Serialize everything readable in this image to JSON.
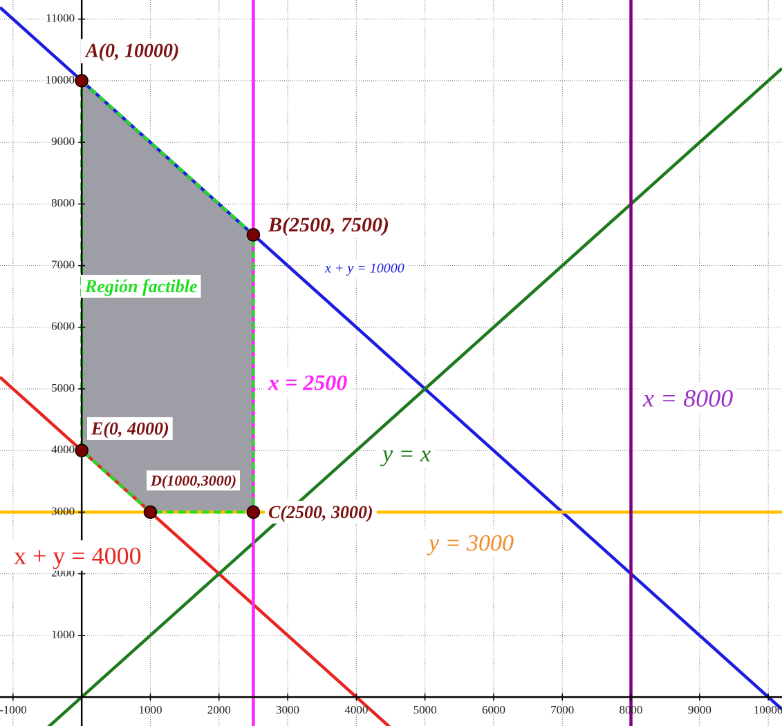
{
  "chart_data": {
    "type": "line",
    "xlim": [
      -1190,
      10200
    ],
    "ylim": [
      -470,
      11310
    ],
    "xticks": [
      -1000,
      1000,
      2000,
      3000,
      4000,
      5000,
      6000,
      7000,
      8000,
      9000,
      10000
    ],
    "yticks": [
      1000,
      2000,
      3000,
      4000,
      5000,
      6000,
      7000,
      8000,
      9000,
      10000,
      11000
    ],
    "grid": true,
    "series": [
      {
        "name": "x + y = 10000",
        "color": "#1c1ce0",
        "x": [
          -1190,
          10200
        ],
        "values": [
          11190,
          -200
        ]
      },
      {
        "name": "x + y = 4000",
        "color": "#e8241f",
        "x": [
          -1190,
          4600
        ],
        "values": [
          5190,
          -600
        ]
      },
      {
        "name": "y = x",
        "color": "#1e7a1e",
        "x": [
          -600,
          10200
        ],
        "values": [
          -600,
          10200
        ]
      },
      {
        "name": "y = 3000",
        "color": "#ffc000",
        "x": [
          -1190,
          10200
        ],
        "values": [
          3000,
          3000
        ]
      },
      {
        "name": "x = 2500",
        "color": "#ff22ff",
        "x": [
          2500,
          2500
        ],
        "values": [
          -470,
          11310
        ]
      },
      {
        "name": "x = 8000",
        "color": "#800080",
        "x": [
          8000,
          8000
        ],
        "values": [
          -470,
          11310
        ]
      }
    ],
    "points": [
      {
        "label": "A(0, 10000)",
        "x": 0,
        "y": 10000
      },
      {
        "label": "B(2500, 7500)",
        "x": 2500,
        "y": 7500
      },
      {
        "label": "C(2500, 3000)",
        "x": 2500,
        "y": 3000
      },
      {
        "label": "D(1000,3000)",
        "x": 1000,
        "y": 3000
      },
      {
        "label": "E(0, 4000)",
        "x": 0,
        "y": 4000
      }
    ],
    "point_color": "#7a0000",
    "region_label": "Región factible",
    "region_color": "#9e9ea6",
    "region_border_color": "#22dd22"
  }
}
